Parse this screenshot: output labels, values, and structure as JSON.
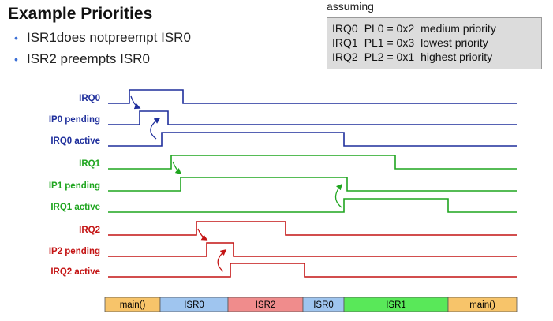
{
  "title": "Example Priorities",
  "bullets": [
    {
      "before": "ISR1 ",
      "underlined": "does not",
      "after": " preempt ISR0"
    },
    {
      "before": "ISR2 preempts ISR0",
      "underlined": "",
      "after": ""
    }
  ],
  "assuming": {
    "label": "assuming",
    "rows": [
      {
        "irq": "IRQ0",
        "pl": "PL0 = 0x2",
        "desc": "medium priority"
      },
      {
        "irq": "IRQ1",
        "pl": "PL1 = 0x3",
        "desc": "lowest priority"
      },
      {
        "irq": "IRQ2",
        "pl": "PL2 = 0x1",
        "desc": "highest priority"
      }
    ]
  },
  "colors": {
    "blue": "#1f2f9c",
    "green": "#1fa51f",
    "red": "#c41414",
    "main_bar": "#f7c46a",
    "isr0_bar": "#9fc5ef",
    "isr2_bar": "#f08c8c",
    "isr1_bar": "#59e859"
  },
  "signals": [
    {
      "label": "IRQ0",
      "color": "blue"
    },
    {
      "label": "IP0 pending",
      "color": "blue"
    },
    {
      "label": "IRQ0 active",
      "color": "blue"
    },
    {
      "label": "IRQ1",
      "color": "green"
    },
    {
      "label": "IP1 pending",
      "color": "green"
    },
    {
      "label": "IRQ1 active",
      "color": "green"
    },
    {
      "label": "IRQ2",
      "color": "red"
    },
    {
      "label": "IP2 pending",
      "color": "red"
    },
    {
      "label": "IRQ2 active",
      "color": "red"
    }
  ],
  "timeline_bar": [
    {
      "label": "main()",
      "color": "main_bar"
    },
    {
      "label": "ISR0",
      "color": "isr0_bar"
    },
    {
      "label": "ISR2",
      "color": "isr2_bar"
    },
    {
      "label": "ISR0",
      "color": "isr0_bar"
    },
    {
      "label": "ISR1",
      "color": "isr1_bar"
    },
    {
      "label": "main()",
      "color": "main_bar"
    }
  ]
}
